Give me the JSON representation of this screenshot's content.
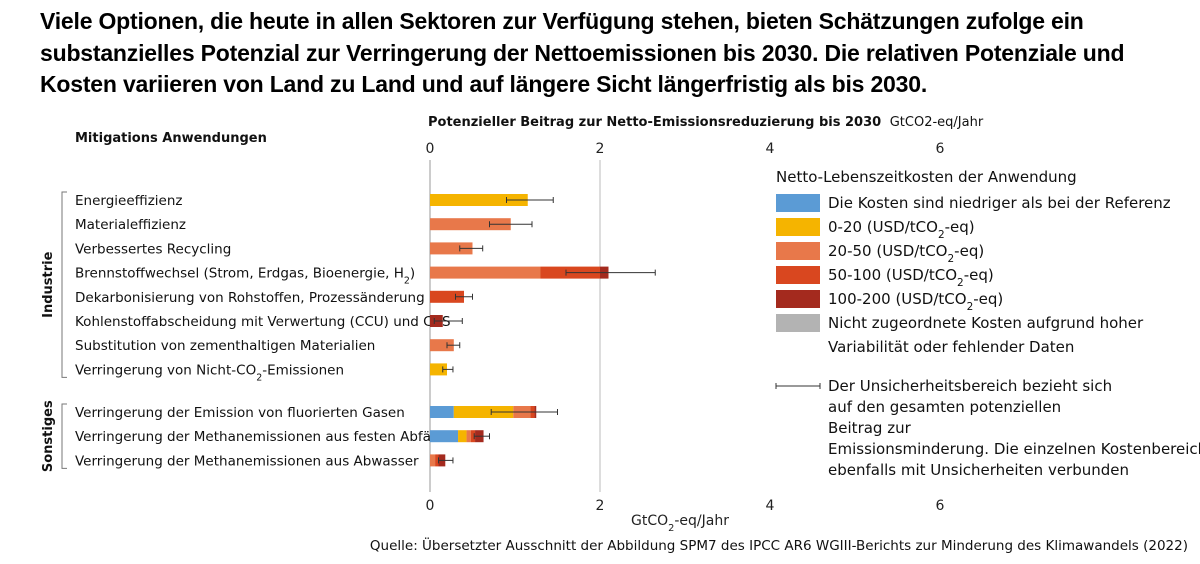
{
  "headline": "Viele Optionen, die heute in allen Sektoren zur Verfügung stehen, bieten Schätzungen zufolge ein substanzielles Potenzial zur Verringerung der Nettoemissionen bis 2030. Die relativen Potenziale und Kosten variieren von Land zu Land und auf längere Sicht längerfristig als bis 2030.",
  "source": "Quelle: Übersetzter Ausschnitt der Abbildung SPM7 des IPCC AR6 WGIII-Berichts zur Minderung des Klimawandels (2022)",
  "colors": {
    "c_neg": "#5b9bd5",
    "c_0_20": "#f5b400",
    "c_20_50": "#e8784a",
    "c_50_100": "#d9471f",
    "c_100_200": "#a42a1e",
    "c_na": "#b3b3b3"
  },
  "chart_data": {
    "type": "bar",
    "orientation": "horizontal",
    "stacked": true,
    "title": "Potenzieller Beitrag zur Netto-Emissionsreduzierung bis 2030",
    "title_unit": "GtCO2-eq/Jahr",
    "column_header": "Mitigations Anwendungen",
    "xlabel": "GtCO2-eq/Jahr",
    "xlim": [
      0,
      6
    ],
    "ticks": [
      "0",
      "2",
      "4",
      "6"
    ],
    "groups": [
      {
        "name": "Industrie",
        "rows": [
          {
            "label": "Energieeffizienz",
            "segments": [
              {
                "cat": "c_0_20",
                "value": 1.15
              }
            ],
            "error": [
              0.9,
              1.45
            ]
          },
          {
            "label": "Materialeffizienz",
            "segments": [
              {
                "cat": "c_20_50",
                "value": 0.95
              }
            ],
            "error": [
              0.7,
              1.2
            ]
          },
          {
            "label": "Verbessertes Recycling",
            "segments": [
              {
                "cat": "c_20_50",
                "value": 0.5
              }
            ],
            "error": [
              0.35,
              0.62
            ]
          },
          {
            "label": "Brennstoffwechsel (Strom, Erdgas, Bioenergie, H₂)",
            "segments": [
              {
                "cat": "c_20_50",
                "value": 1.3
              },
              {
                "cat": "c_50_100",
                "value": 0.7
              },
              {
                "cat": "c_100_200",
                "value": 0.1
              }
            ],
            "error": [
              1.6,
              2.65
            ]
          },
          {
            "label": "Dekarbonisierung von Rohstoffen, Prozessänderung",
            "segments": [
              {
                "cat": "c_50_100",
                "value": 0.4
              }
            ],
            "error": [
              0.3,
              0.5
            ]
          },
          {
            "label": "Kohlenstoffabscheidung mit Verwertung (CCU) und CCS",
            "segments": [
              {
                "cat": "c_100_200",
                "value": 0.15
              }
            ],
            "error": [
              0.05,
              0.38
            ]
          },
          {
            "label": "Substitution von zementhaltigen Materialien",
            "segments": [
              {
                "cat": "c_20_50",
                "value": 0.28
              }
            ],
            "error": [
              0.2,
              0.35
            ]
          },
          {
            "label": "Verringerung von Nicht-CO₂-Emissionen",
            "segments": [
              {
                "cat": "c_0_20",
                "value": 0.2
              }
            ],
            "error": [
              0.15,
              0.27
            ]
          }
        ]
      },
      {
        "name": "Sonstiges",
        "rows": [
          {
            "label": "Verringerung der Emission von fluorierten Gasen",
            "segments": [
              {
                "cat": "c_neg",
                "value": 0.28
              },
              {
                "cat": "c_0_20",
                "value": 0.7
              },
              {
                "cat": "c_20_50",
                "value": 0.2
              },
              {
                "cat": "c_50_100",
                "value": 0.05
              },
              {
                "cat": "c_100_200",
                "value": 0.02
              }
            ],
            "error": [
              0.72,
              1.5
            ]
          },
          {
            "label": "Verringerung der Methanemissionen aus festen Abfällen",
            "segments": [
              {
                "cat": "c_neg",
                "value": 0.33
              },
              {
                "cat": "c_0_20",
                "value": 0.1
              },
              {
                "cat": "c_20_50",
                "value": 0.05
              },
              {
                "cat": "c_50_100",
                "value": 0.05
              },
              {
                "cat": "c_100_200",
                "value": 0.1
              }
            ],
            "error": [
              0.52,
              0.7
            ]
          },
          {
            "label": "Verringerung der Methanemissionen aus Abwasser",
            "segments": [
              {
                "cat": "c_20_50",
                "value": 0.06
              },
              {
                "cat": "c_50_100",
                "value": 0.04
              },
              {
                "cat": "c_100_200",
                "value": 0.08
              }
            ],
            "error": [
              0.1,
              0.27
            ]
          }
        ]
      }
    ],
    "legend": {
      "title": "Netto-Lebenszeitkosten der Anwendung",
      "items": [
        {
          "cat": "c_neg",
          "label": "Die Kosten sind niedriger als bei der Referenz"
        },
        {
          "cat": "c_0_20",
          "label": "0-20 (USD/tCO₂-eq)"
        },
        {
          "cat": "c_20_50",
          "label": "20-50 (USD/tCO₂-eq)"
        },
        {
          "cat": "c_50_100",
          "label": "50-100 (USD/tCO₂-eq)"
        },
        {
          "cat": "c_100_200",
          "label": "100-200 (USD/tCO₂-eq)"
        },
        {
          "cat": "c_na",
          "label": "Nicht zugeordnete Kosten aufgrund hoher Variabilität oder fehlender Daten"
        }
      ],
      "uncertainty_note": "Der Unsicherheitsbereich bezieht sich auf den gesamten potenziellen Beitrag zur Emissionsminderung. Die einzelnen Kostenbereiche sind ebenfalls mit Unsicherheiten verbunden"
    }
  }
}
